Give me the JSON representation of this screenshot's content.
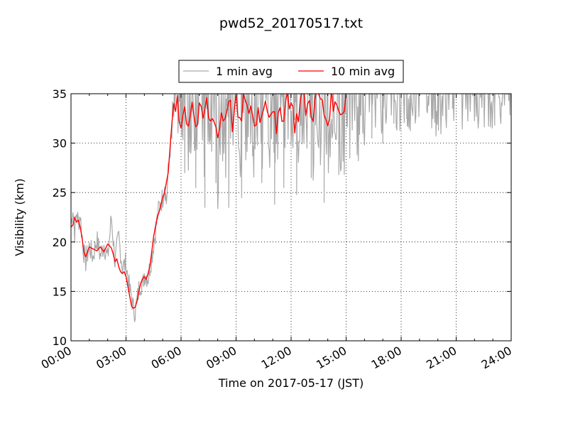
{
  "chart_data": {
    "type": "line",
    "title": "pwd52_20170517.txt",
    "xlabel": "Time on 2017-05-17 (JST)",
    "ylabel": "Visibility (km)",
    "xlim_hours": [
      0,
      24
    ],
    "ylim": [
      10,
      35
    ],
    "x_ticks": [
      "00:00",
      "03:00",
      "06:00",
      "09:00",
      "12:00",
      "15:00",
      "18:00",
      "21:00",
      "24:00"
    ],
    "y_ticks": [
      "10",
      "15",
      "20",
      "25",
      "30",
      "35"
    ],
    "grid": true,
    "legend_placement": "top-center",
    "series": [
      {
        "name": "1 min avg",
        "color": "#a9a9a9",
        "x_hours": [
          0.0,
          0.1,
          0.2,
          0.3,
          0.4,
          0.5,
          0.6,
          0.7,
          0.8,
          0.9,
          1.0,
          1.2,
          1.4,
          1.6,
          1.8,
          2.0,
          2.2,
          2.4,
          2.6,
          2.8,
          3.0,
          3.1,
          3.2,
          3.3,
          3.4,
          3.5,
          3.6,
          3.7,
          3.8,
          3.9,
          4.0,
          4.2,
          4.4,
          4.6,
          4.8,
          5.0,
          5.1,
          5.2,
          5.3,
          5.4,
          5.5,
          5.6,
          5.7,
          5.8,
          5.9,
          6.0,
          6.2,
          6.4,
          6.6,
          6.8,
          7.0,
          7.2,
          7.4,
          7.6,
          7.8,
          8.0,
          8.2,
          8.4,
          8.6,
          8.8,
          9.0,
          9.2,
          9.4,
          9.6,
          9.8,
          10.0,
          10.2,
          10.4,
          10.6,
          10.8,
          11.0,
          11.2,
          11.4,
          11.6,
          11.8,
          12.0,
          12.2,
          12.4,
          12.6,
          12.8,
          13.0,
          13.2,
          13.4,
          13.6,
          13.8,
          14.0,
          14.2,
          14.4,
          14.6,
          14.8,
          15.0,
          15.2,
          15.4,
          15.6,
          15.8,
          16.0,
          16.2,
          16.4,
          16.6,
          16.8,
          17.0,
          17.2,
          17.4,
          17.6,
          17.8,
          18.0,
          18.2,
          18.4,
          18.6,
          18.8,
          19.0,
          19.5,
          20.0,
          20.5,
          21.0,
          21.5,
          22.0,
          22.5,
          23.0,
          23.5,
          24.0
        ],
        "values": [
          21.5,
          23.6,
          21.0,
          23.0,
          22.0,
          22.8,
          20.5,
          19.0,
          18.0,
          18.8,
          19.5,
          18.5,
          20.3,
          18.6,
          19.8,
          18.3,
          22.5,
          18.0,
          20.5,
          17.5,
          17.8,
          16.5,
          15.0,
          14.5,
          13.2,
          13.0,
          14.0,
          15.2,
          16.0,
          15.4,
          16.8,
          16.4,
          18.5,
          21.0,
          23.5,
          24.5,
          26.0,
          24.0,
          27.0,
          29.5,
          30.5,
          33.0,
          35.0,
          33.5,
          35.0,
          31.0,
          34.5,
          28.0,
          33.0,
          31.5,
          35.0,
          27.5,
          32.0,
          30.0,
          35.0,
          26.5,
          33.0,
          29.0,
          35.0,
          31.0,
          34.0,
          27.0,
          35.0,
          29.5,
          33.0,
          26.0,
          34.0,
          30.0,
          35.0,
          28.0,
          33.5,
          27.0,
          35.0,
          31.0,
          34.0,
          29.0,
          35.0,
          26.5,
          33.0,
          31.0,
          35.0,
          28.5,
          34.5,
          30.0,
          35.0,
          27.5,
          33.0,
          31.5,
          35.0,
          26.0,
          34.0,
          32.0,
          35.0,
          30.0,
          35.0,
          32.5,
          35.0,
          31.0,
          35.0,
          33.0,
          35.0,
          32.0,
          35.0,
          33.5,
          35.0,
          34.0,
          35.0,
          33.0,
          35.0,
          34.5,
          35.0,
          35.0,
          34.0,
          35.0,
          35.0,
          34.5,
          35.0,
          35.0,
          35.0,
          34.5,
          35.0
        ],
        "dips": [
          {
            "x_hours": 6.2,
            "min": 27.0
          },
          {
            "x_hours": 6.8,
            "min": 25.5
          },
          {
            "x_hours": 7.3,
            "min": 23.5
          },
          {
            "x_hours": 7.9,
            "min": 26.0
          },
          {
            "x_hours": 8.6,
            "min": 23.5
          },
          {
            "x_hours": 9.3,
            "min": 24.5
          },
          {
            "x_hours": 10.4,
            "min": 26.0
          },
          {
            "x_hours": 11.1,
            "min": 23.8
          },
          {
            "x_hours": 11.6,
            "min": 25.5
          },
          {
            "x_hours": 12.3,
            "min": 24.8
          },
          {
            "x_hours": 13.1,
            "min": 26.5
          },
          {
            "x_hours": 13.8,
            "min": 24.0
          },
          {
            "x_hours": 14.6,
            "min": 26.8
          },
          {
            "x_hours": 15.2,
            "min": 28.5
          },
          {
            "x_hours": 15.9,
            "min": 31.0
          },
          {
            "x_hours": 16.4,
            "min": 30.5
          },
          {
            "x_hours": 17.0,
            "min": 30.0
          },
          {
            "x_hours": 17.6,
            "min": 32.0
          },
          {
            "x_hours": 18.3,
            "min": 32.5
          },
          {
            "x_hours": 20.8,
            "min": 33.5
          },
          {
            "x_hours": 23.1,
            "min": 33.8
          }
        ]
      },
      {
        "name": "10 min avg",
        "color": "#ff0000",
        "x_hours": [
          0.0,
          0.1,
          0.2,
          0.3,
          0.4,
          0.5,
          0.6,
          0.7,
          0.8,
          0.9,
          1.0,
          1.2,
          1.4,
          1.6,
          1.8,
          2.0,
          2.1,
          2.2,
          2.3,
          2.4,
          2.5,
          2.6,
          2.7,
          2.8,
          2.9,
          3.0,
          3.1,
          3.2,
          3.3,
          3.4,
          3.5,
          3.6,
          3.7,
          3.8,
          3.9,
          4.0,
          4.1,
          4.2,
          4.3,
          4.4,
          4.5,
          4.6,
          4.7,
          4.8,
          4.9,
          5.0,
          5.1,
          5.2,
          5.3,
          5.4,
          5.5,
          5.6,
          5.7,
          5.8,
          5.9,
          6.0,
          6.2,
          6.4,
          6.6,
          6.8,
          7.0,
          7.2,
          7.4,
          7.6,
          7.8,
          8.0,
          8.2,
          8.4,
          8.6,
          8.8,
          9.0,
          9.2,
          9.4,
          9.6,
          9.8,
          10.0,
          10.2,
          10.4,
          10.6,
          10.8,
          11.0,
          11.2,
          11.4,
          11.6,
          11.8,
          12.0,
          12.2,
          12.4,
          12.6,
          12.8,
          13.0,
          13.2,
          13.4,
          13.6,
          13.8,
          14.0,
          14.2,
          14.4,
          14.6,
          14.8,
          15.0
        ],
        "values": [
          21.5,
          21.7,
          22.5,
          22.0,
          22.2,
          21.5,
          20.5,
          19.0,
          18.5,
          19.0,
          19.5,
          19.3,
          19.1,
          19.5,
          19.0,
          19.8,
          19.6,
          19.4,
          18.8,
          18.0,
          18.3,
          17.5,
          17.0,
          16.8,
          17.0,
          16.5,
          15.5,
          14.5,
          13.5,
          13.3,
          13.4,
          14.0,
          15.0,
          15.8,
          16.3,
          16.5,
          16.2,
          16.8,
          17.5,
          19.0,
          20.5,
          21.5,
          22.5,
          23.0,
          23.8,
          24.5,
          25.0,
          26.0,
          27.0,
          29.5,
          32.0,
          34.0,
          33.5,
          35.0,
          33.0,
          32.0,
          33.5,
          32.0,
          34.5,
          31.5,
          33.0,
          32.5,
          34.0,
          32.0,
          33.0,
          30.5,
          33.0,
          32.5,
          35.0,
          32.0,
          34.0,
          31.5,
          34.5,
          33.0,
          34.0,
          31.5,
          33.5,
          32.5,
          35.0,
          33.0,
          34.0,
          30.5,
          33.5,
          33.0,
          35.0,
          34.0,
          32.0,
          33.0,
          35.0,
          33.5,
          34.0,
          33.0,
          35.0,
          34.5,
          33.0,
          32.0,
          35.0,
          33.5,
          34.0,
          33.0,
          35.0
        ]
      }
    ]
  }
}
